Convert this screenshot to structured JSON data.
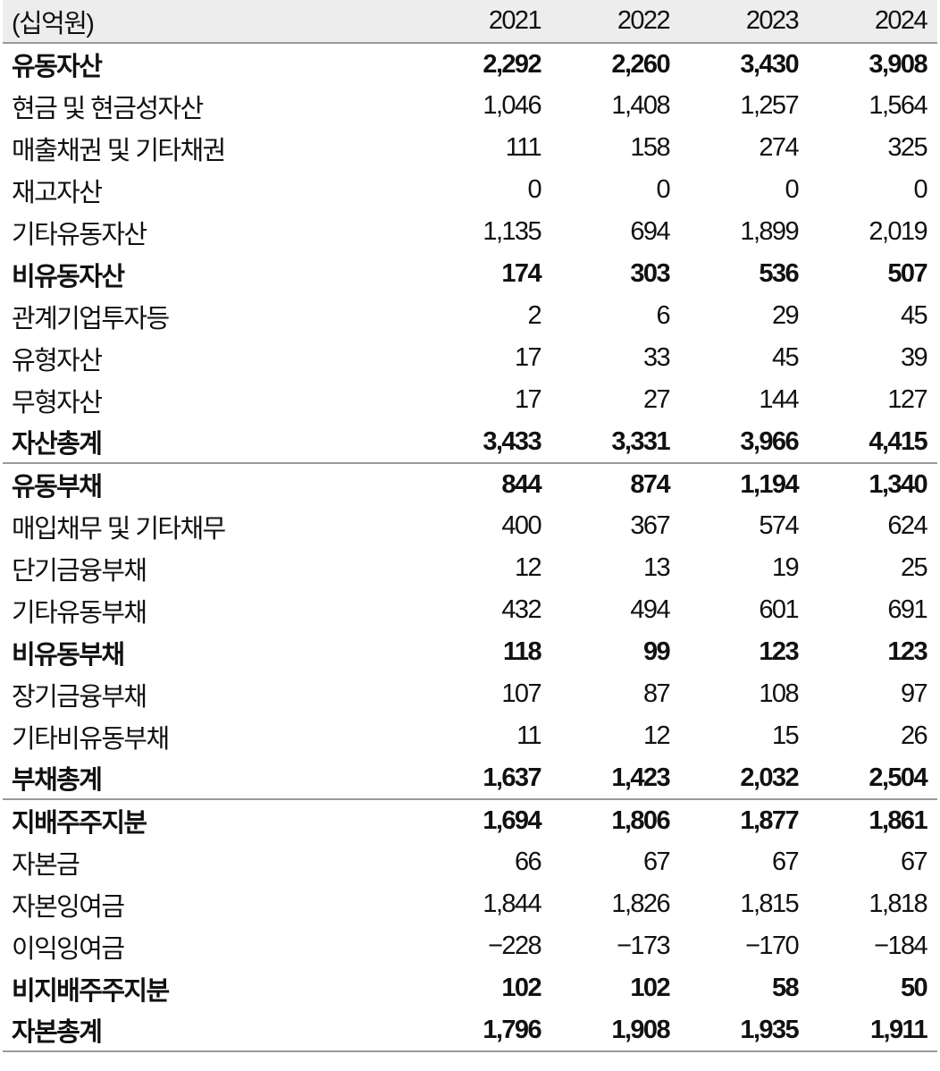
{
  "header": {
    "unit": "(십억원)",
    "years": [
      "2021",
      "2022",
      "2023",
      "2024"
    ]
  },
  "rows": [
    {
      "label": "유동자산",
      "values": [
        "2,292",
        "2,260",
        "3,430",
        "3,908"
      ],
      "bold": true,
      "sep": false
    },
    {
      "label": "현금 및 현금성자산",
      "values": [
        "1,046",
        "1,408",
        "1,257",
        "1,564"
      ],
      "bold": false,
      "sep": false
    },
    {
      "label": "매출채권 및 기타채권",
      "values": [
        "111",
        "158",
        "274",
        "325"
      ],
      "bold": false,
      "sep": false
    },
    {
      "label": "재고자산",
      "values": [
        "0",
        "0",
        "0",
        "0"
      ],
      "bold": false,
      "sep": false
    },
    {
      "label": "기타유동자산",
      "values": [
        "1,135",
        "694",
        "1,899",
        "2,019"
      ],
      "bold": false,
      "sep": false
    },
    {
      "label": "비유동자산",
      "values": [
        "174",
        "303",
        "536",
        "507"
      ],
      "bold": true,
      "sep": false
    },
    {
      "label": "관계기업투자등",
      "values": [
        "2",
        "6",
        "29",
        "45"
      ],
      "bold": false,
      "sep": false
    },
    {
      "label": "유형자산",
      "values": [
        "17",
        "33",
        "45",
        "39"
      ],
      "bold": false,
      "sep": false
    },
    {
      "label": "무형자산",
      "values": [
        "17",
        "27",
        "144",
        "127"
      ],
      "bold": false,
      "sep": false
    },
    {
      "label": "자산총계",
      "values": [
        "3,433",
        "3,331",
        "3,966",
        "4,415"
      ],
      "bold": true,
      "sep": false
    },
    {
      "label": "유동부채",
      "values": [
        "844",
        "874",
        "1,194",
        "1,340"
      ],
      "bold": true,
      "sep": true
    },
    {
      "label": "매입채무 및 기타채무",
      "values": [
        "400",
        "367",
        "574",
        "624"
      ],
      "bold": false,
      "sep": false
    },
    {
      "label": "단기금융부채",
      "values": [
        "12",
        "13",
        "19",
        "25"
      ],
      "bold": false,
      "sep": false
    },
    {
      "label": "기타유동부채",
      "values": [
        "432",
        "494",
        "601",
        "691"
      ],
      "bold": false,
      "sep": false
    },
    {
      "label": "비유동부채",
      "values": [
        "118",
        "99",
        "123",
        "123"
      ],
      "bold": true,
      "sep": false
    },
    {
      "label": "장기금융부채",
      "values": [
        "107",
        "87",
        "108",
        "97"
      ],
      "bold": false,
      "sep": false
    },
    {
      "label": "기타비유동부채",
      "values": [
        "11",
        "12",
        "15",
        "26"
      ],
      "bold": false,
      "sep": false
    },
    {
      "label": "부채총계",
      "values": [
        "1,637",
        "1,423",
        "2,032",
        "2,504"
      ],
      "bold": true,
      "sep": false
    },
    {
      "label": "지배주주지분",
      "values": [
        "1,694",
        "1,806",
        "1,877",
        "1,861"
      ],
      "bold": true,
      "sep": true
    },
    {
      "label": "자본금",
      "values": [
        "66",
        "67",
        "67",
        "67"
      ],
      "bold": false,
      "sep": false
    },
    {
      "label": "자본잉여금",
      "values": [
        "1,844",
        "1,826",
        "1,815",
        "1,818"
      ],
      "bold": false,
      "sep": false
    },
    {
      "label": "이익잉여금",
      "values": [
        "−228",
        "−173",
        "−170",
        "−184"
      ],
      "bold": false,
      "sep": false
    },
    {
      "label": "비지배주주지분",
      "values": [
        "102",
        "102",
        "58",
        "50"
      ],
      "bold": true,
      "sep": false
    },
    {
      "label": "자본총계",
      "values": [
        "1,796",
        "1,908",
        "1,935",
        "1,911"
      ],
      "bold": true,
      "sep": false
    }
  ]
}
